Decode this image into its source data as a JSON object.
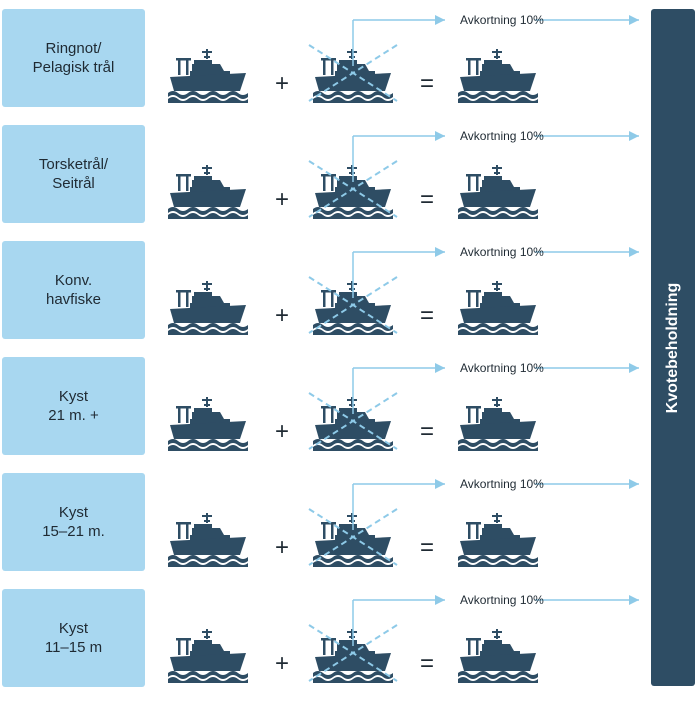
{
  "rows": [
    {
      "label": "Ringnot/\nPelagisk trål",
      "plus": "+",
      "equals": "=",
      "reduction": "Avkortning 10%"
    },
    {
      "label": "Torsketrål/\nSeitrål",
      "plus": "+",
      "equals": "=",
      "reduction": "Avkortning 10%"
    },
    {
      "label": "Konv.\nhavfiske",
      "plus": "+",
      "equals": "=",
      "reduction": "Avkortning 10%"
    },
    {
      "label": "Kyst\n21 m. +",
      "plus": "+",
      "equals": "=",
      "reduction": "Avkortning 10%"
    },
    {
      "label": "Kyst\n15–21 m.",
      "plus": "+",
      "equals": "=",
      "reduction": "Avkortning 10%"
    },
    {
      "label": "Kyst\n11–15 m",
      "plus": "+",
      "equals": "=",
      "reduction": "Avkortning 10%"
    }
  ],
  "quota_label": "Kvotebeholdning",
  "colors": {
    "box": "#a8d7f0",
    "ship": "#2e4d64",
    "arrow": "#8ecae8",
    "bar": "#2e4d64"
  },
  "icons": {
    "vessel": "fishing-vessel-icon",
    "removed_vessel": "crossed-out-vessel-icon"
  }
}
